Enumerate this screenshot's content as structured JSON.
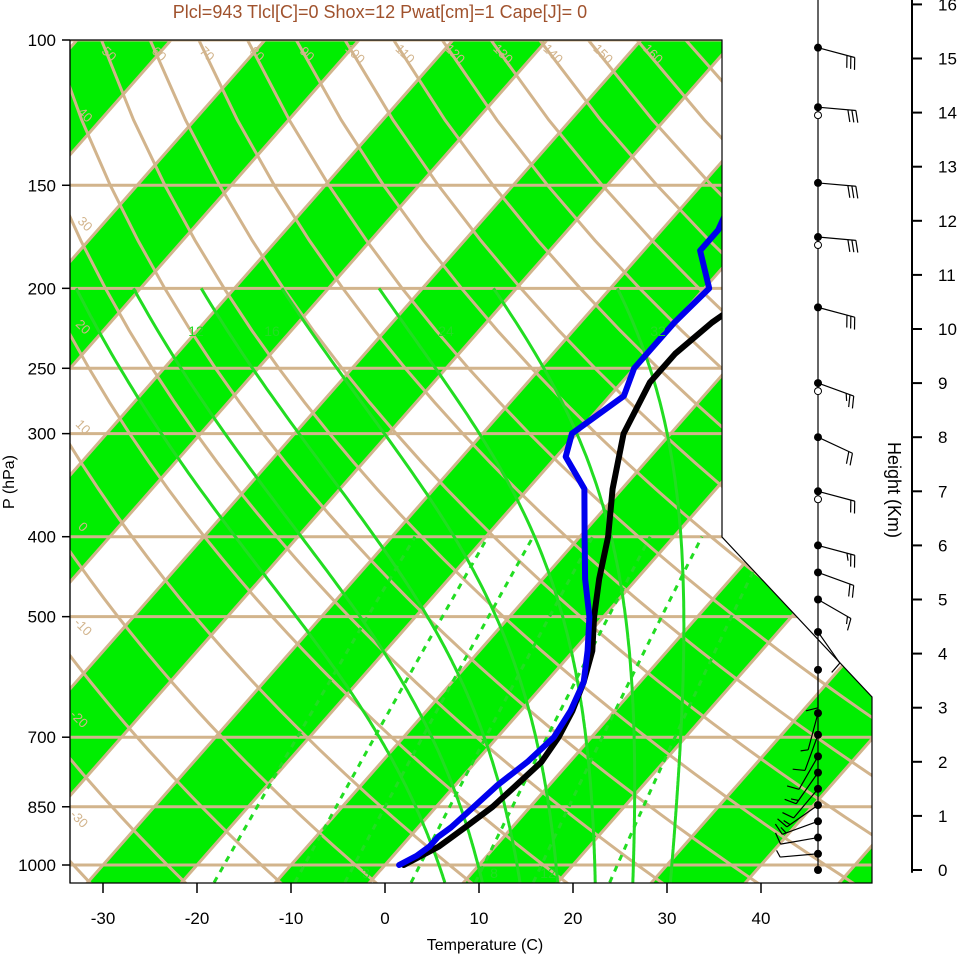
{
  "chart_data": {
    "type": "line",
    "subtype": "skew-t log-p sounding",
    "title": "Plcl=943 Tlcl[C]=0 Shox=12 Pwat[cm]=1 Cape[J]= 0",
    "xlabel": "Temperature (C)",
    "ylabel": "P (hPa)",
    "height_axis_label": "Height (Km)",
    "xticks": [
      "-30",
      "-20",
      "-10",
      "0",
      "10",
      "20",
      "30",
      "40"
    ],
    "pressure_ticks": [
      "100",
      "150",
      "200",
      "250",
      "300",
      "400",
      "500",
      "700",
      "850",
      "1000"
    ],
    "height_ticks": [
      "0",
      "1",
      "2",
      "3",
      "4",
      "5",
      "6",
      "7",
      "8",
      "9",
      "10",
      "11",
      "12",
      "13",
      "14",
      "15",
      "16"
    ],
    "xlim": [
      -33,
      50
    ],
    "plim": [
      1050,
      100
    ],
    "grid": true,
    "colors": {
      "title": "#a0522d",
      "isotherm_band": "#00ee00",
      "grid": "#d2b48c",
      "mixing_ratio": "#22dd22",
      "temperature": "#000000",
      "dewpoint": "#0000ee",
      "wind": "#000000"
    },
    "isotherm_labels": [
      "50",
      "60",
      "70",
      "80",
      "90",
      "100",
      "110",
      "120",
      "130",
      "140",
      "150",
      "160",
      "40",
      "30",
      "20",
      "10",
      "0",
      "-10",
      "-20",
      "-30",
      "30",
      "20",
      "10",
      "0",
      "10",
      "20",
      "30"
    ],
    "mixing_ratio_labels": [
      "12",
      "16",
      "24",
      "32",
      "3",
      "8",
      "12"
    ],
    "series": [
      {
        "name": "temperature",
        "pressure": [
          1000,
          975,
          950,
          925,
          900,
          850,
          800,
          750,
          700,
          650,
          600,
          550,
          500,
          450,
          400,
          350,
          300,
          260,
          240,
          220,
          200,
          180,
          160,
          140,
          120,
          105
        ],
        "temp": [
          2,
          3,
          4,
          4.5,
          5,
          6,
          6.5,
          7,
          6.5,
          5.5,
          4,
          2,
          -1,
          -4,
          -7,
          -11,
          -15,
          -17,
          -17,
          -16,
          -14,
          -11,
          -8,
          -6,
          -3,
          1
        ]
      },
      {
        "name": "dewpoint",
        "pressure": [
          1000,
          975,
          950,
          925,
          900,
          850,
          800,
          750,
          700,
          650,
          600,
          550,
          500,
          450,
          400,
          350,
          320,
          300,
          270,
          250,
          220,
          200,
          180,
          170,
          150,
          120,
          105
        ],
        "temp": [
          1.5,
          2.5,
          3,
          3,
          3.5,
          4,
          4.5,
          5.5,
          6,
          5.3,
          4,
          1.5,
          -1.5,
          -5.5,
          -9.5,
          -14,
          -19,
          -20.5,
          -18.5,
          -20,
          -20,
          -19.5,
          -24,
          -24,
          -26,
          -27.5,
          -29
        ]
      }
    ],
    "wind_barbs": [
      {
        "height_km": 0.0,
        "dir": 0,
        "speed": 0
      },
      {
        "height_km": 0.3,
        "dir": 95,
        "speed": 5
      },
      {
        "height_km": 0.6,
        "dir": 100,
        "speed": 10
      },
      {
        "height_km": 0.9,
        "dir": 110,
        "speed": 15
      },
      {
        "height_km": 1.2,
        "dir": 125,
        "speed": 15
      },
      {
        "height_km": 1.5,
        "dir": 140,
        "speed": 10
      },
      {
        "height_km": 1.8,
        "dir": 145,
        "speed": 15
      },
      {
        "height_km": 2.1,
        "dir": 150,
        "speed": 10
      },
      {
        "height_km": 2.5,
        "dir": 160,
        "speed": 10
      },
      {
        "height_km": 2.9,
        "dir": 165,
        "speed": 5
      },
      {
        "height_km": 3.7,
        "dir": 180,
        "speed": 10
      },
      {
        "height_km": 4.4,
        "dir": 215,
        "speed": 10
      },
      {
        "height_km": 5.0,
        "dir": 240,
        "speed": 15
      },
      {
        "height_km": 5.5,
        "dir": 250,
        "speed": 20
      },
      {
        "height_km": 6.0,
        "dir": 255,
        "speed": 25
      },
      {
        "height_km": 7.0,
        "dir": 255,
        "speed": 20
      },
      {
        "height_km": 8.0,
        "dir": 245,
        "speed": 20
      },
      {
        "height_km": 9.0,
        "dir": 250,
        "speed": 25
      },
      {
        "height_km": 10.4,
        "dir": 255,
        "speed": 30
      },
      {
        "height_km": 11.7,
        "dir": 265,
        "speed": 30
      },
      {
        "height_km": 12.7,
        "dir": 265,
        "speed": 30
      },
      {
        "height_km": 14.1,
        "dir": 265,
        "speed": 30
      },
      {
        "height_km": 15.2,
        "dir": 255,
        "speed": 30
      }
    ]
  }
}
